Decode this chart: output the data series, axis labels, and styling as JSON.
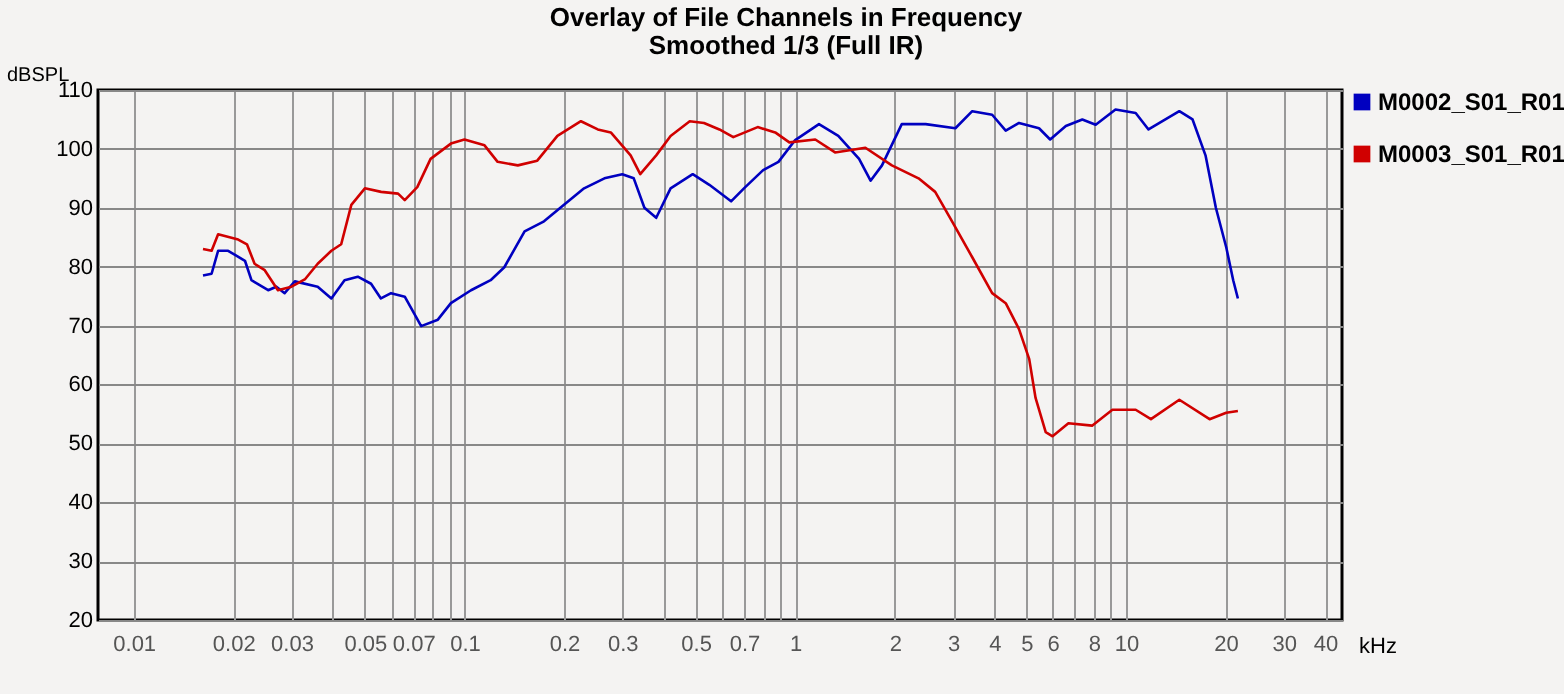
{
  "chart_data": {
    "type": "line",
    "title": "Overlay of File Channels in Frequency",
    "subtitle": "Smoothed 1/3 (Full IR)",
    "xlabel": "kHz",
    "ylabel": "dBSPL",
    "log": "x",
    "grid": true,
    "legend": "top right",
    "xlim": [
      0.0078,
      45
    ],
    "ylim": [
      20,
      110
    ],
    "xticks": [
      0.01,
      0.02,
      0.03,
      {
        "value": 0.04,
        "label": null
      },
      0.05,
      {
        "value": 0.06,
        "label": null
      },
      0.07,
      {
        "value": 0.08,
        "label": null
      },
      {
        "value": 0.09,
        "label": null
      },
      0.1,
      0.2,
      0.3,
      {
        "value": 0.4,
        "label": null
      },
      0.5,
      {
        "value": 0.6,
        "label": null
      },
      0.7,
      {
        "value": 0.8,
        "label": null
      },
      {
        "value": 0.9,
        "label": null
      },
      1,
      2,
      3,
      4,
      5,
      6,
      {
        "value": 7,
        "label": null
      },
      8,
      {
        "value": 9,
        "label": null
      },
      10,
      20,
      30,
      40
    ],
    "yticks": [
      20,
      30,
      40,
      50,
      60,
      70,
      80,
      90,
      100,
      110
    ],
    "series": [
      {
        "name": "M0002_S01_R01",
        "color": "#0000c0",
        "x": [
          0.0162,
          0.0172,
          0.018,
          0.0193,
          0.0217,
          0.0227,
          0.0255,
          0.027,
          0.0286,
          0.0307,
          0.036,
          0.0396,
          0.0434,
          0.0476,
          0.0522,
          0.0559,
          0.06,
          0.066,
          0.074,
          0.0831,
          0.091,
          0.1047,
          0.12,
          0.132,
          0.152,
          0.174,
          0.2,
          0.23,
          0.265,
          0.3,
          0.325,
          0.35,
          0.38,
          0.42,
          0.49,
          0.55,
          0.64,
          0.7,
          0.8,
          0.89,
          1.0,
          1.18,
          1.35,
          1.56,
          1.69,
          1.83,
          2.1,
          2.48,
          3.05,
          3.43,
          3.94,
          4.33,
          4.75,
          5.46,
          5.9,
          6.58,
          7.38,
          8.1,
          9.3,
          10.7,
          11.7,
          14.5,
          15.9,
          17.4,
          18.7,
          20.1,
          21.1,
          21.8
        ],
        "values": [
          78.5,
          78.8,
          82.7,
          82.7,
          81,
          77.7,
          76,
          76.6,
          75.5,
          77.5,
          76.6,
          74.6,
          77.7,
          78.3,
          77.1,
          74.6,
          75.5,
          74.9,
          69.9,
          71,
          73.8,
          76,
          77.7,
          79.9,
          86,
          87.7,
          90.5,
          93.3,
          95,
          95.7,
          95,
          90,
          88.3,
          93.3,
          95.7,
          93.9,
          91.1,
          93.3,
          96.4,
          97.8,
          101.5,
          104.2,
          102.2,
          98.3,
          94.6,
          97.2,
          104.2,
          104.2,
          103.5,
          106.4,
          105.8,
          103.1,
          104.4,
          103.5,
          101.6,
          103.9,
          105,
          104.1,
          106.7,
          106.1,
          103.3,
          106.4,
          105,
          98.9,
          90,
          83.3,
          77.7,
          74.6
        ]
      },
      {
        "name": "M0003_S01_R01",
        "color": "#d00000",
        "x": [
          0.0162,
          0.0172,
          0.018,
          0.0207,
          0.022,
          0.0232,
          0.0249,
          0.0273,
          0.03,
          0.033,
          0.036,
          0.0396,
          0.0424,
          0.0455,
          0.05,
          0.056,
          0.063,
          0.066,
          0.072,
          0.079,
          0.091,
          0.1,
          0.115,
          0.126,
          0.145,
          0.166,
          0.191,
          0.225,
          0.253,
          0.277,
          0.318,
          0.34,
          0.38,
          0.42,
          0.48,
          0.53,
          0.59,
          0.65,
          0.77,
          0.87,
          0.96,
          1.15,
          1.32,
          1.63,
          1.96,
          2.36,
          2.65,
          2.98,
          3.43,
          3.94,
          4.33,
          4.75,
          5.1,
          5.33,
          5.72,
          6.0,
          6.7,
          7.9,
          9.1,
          10.7,
          11.9,
          14.5,
          17.9,
          20.1,
          21.8
        ],
        "values": [
          83,
          82.7,
          85.5,
          84.6,
          83.8,
          80.5,
          79.4,
          76,
          76.6,
          77.9,
          80.5,
          82.7,
          83.8,
          90.5,
          93.3,
          92.7,
          92.4,
          91.3,
          93.5,
          98.3,
          100.9,
          101.6,
          100.6,
          97.8,
          97.2,
          98,
          102.2,
          104.7,
          103.3,
          102.8,
          98.9,
          95.7,
          98.9,
          102.2,
          104.7,
          104.4,
          103.3,
          102,
          103.7,
          102.8,
          101.1,
          101.6,
          99.4,
          100.2,
          97.2,
          95,
          92.7,
          87.7,
          81.6,
          75.5,
          73.8,
          69.4,
          64.3,
          57.7,
          51.9,
          51.2,
          53.4,
          53,
          55.7,
          55.7,
          54.1,
          57.4,
          54.1,
          55.2,
          55.5
        ]
      }
    ]
  }
}
